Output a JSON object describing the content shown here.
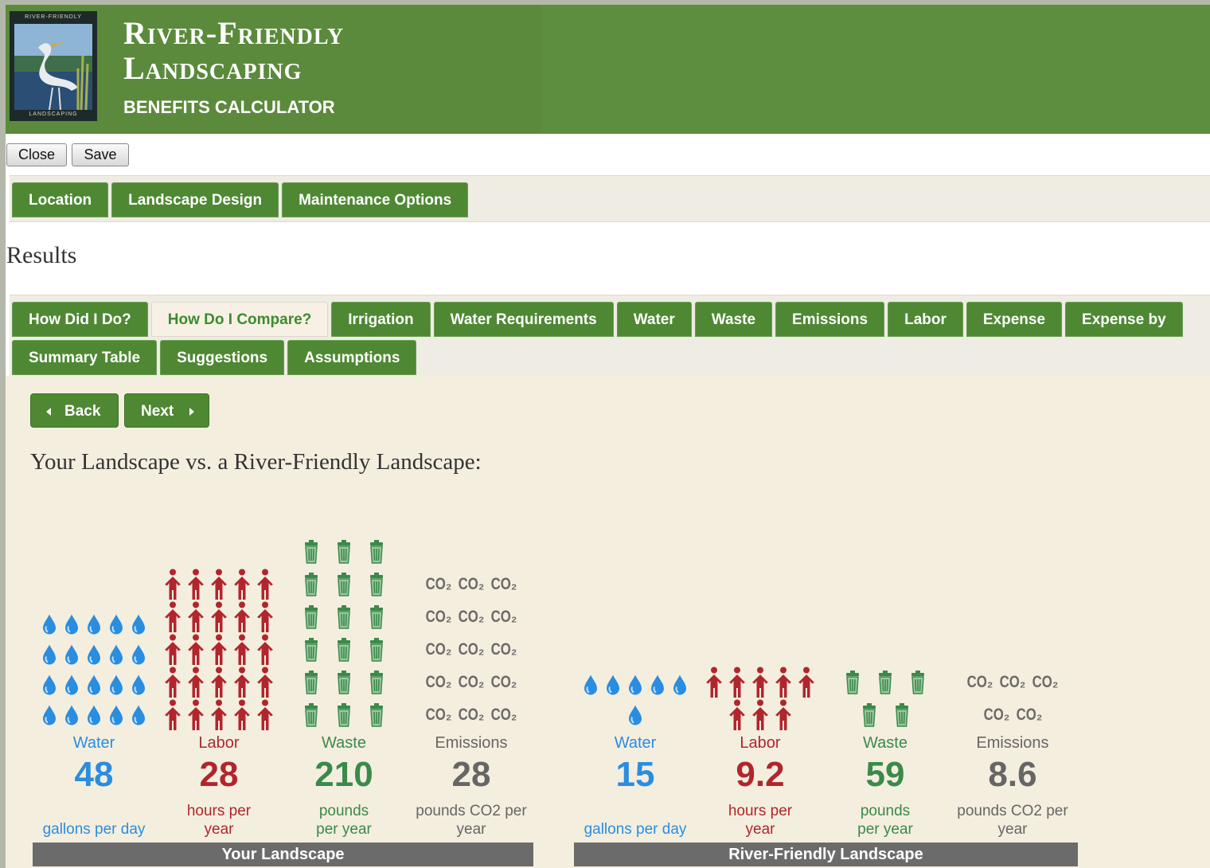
{
  "header": {
    "logo_top": "RIVER-FRIENDLY",
    "logo_bottom": "LANDSCAPING",
    "title_line1": "River-Friendly",
    "title_line2": "Landscaping",
    "subtitle": "BENEFITS CALCULATOR"
  },
  "buttons": [
    "Close",
    "Save"
  ],
  "main_tabs": [
    "Location",
    "Landscape Design",
    "Maintenance Options"
  ],
  "results_heading": "Results",
  "result_tabs_row1": [
    "How Did I Do?",
    "How Do I Compare?",
    "Irrigation",
    "Water Requirements",
    "Water",
    "Waste",
    "Emissions",
    "Labor",
    "Expense",
    "Expense by"
  ],
  "result_tabs_row2": [
    "Summary Table",
    "Suggestions",
    "Assumptions"
  ],
  "active_tab": 1,
  "nav": [
    "Back",
    "Next"
  ],
  "comparison_title": "Your Landscape vs. a River-Friendly Landscape:",
  "co2_icon_label": "CO₂",
  "panels": [
    {
      "label": "Your Landscape",
      "metrics": [
        {
          "name": "Water",
          "value": 48,
          "unit": "gallons per day",
          "icons": 20,
          "icon": "drop",
          "color": "#2a8de0"
        },
        {
          "name": "Labor",
          "value": 28,
          "unit": "hours per year",
          "icons": 25,
          "icon": "person",
          "color": "#b0262c"
        },
        {
          "name": "Waste",
          "value": 210,
          "unit": "pounds per year",
          "icons": 18,
          "icon": "can",
          "color": "#3a8a4a"
        },
        {
          "name": "Emissions",
          "value": 28,
          "unit": "pounds CO2 per year",
          "icons": 15,
          "icon": "co2",
          "color": "#666666"
        }
      ]
    },
    {
      "label": "River-Friendly Landscape",
      "metrics": [
        {
          "name": "Water",
          "value": 15,
          "unit": "gallons per day",
          "icons": 6,
          "icon": "drop",
          "color": "#2a8de0"
        },
        {
          "name": "Labor",
          "value": 9.2,
          "unit": "hours per year",
          "icons": 8,
          "icon": "person",
          "color": "#b0262c"
        },
        {
          "name": "Waste",
          "value": 59,
          "unit": "pounds per year",
          "icons": 5,
          "icon": "can",
          "color": "#3a8a4a"
        },
        {
          "name": "Emissions",
          "value": 8.6,
          "unit": "pounds CO2 per year",
          "icons": 5,
          "icon": "co2",
          "color": "#666666"
        }
      ]
    }
  ]
}
